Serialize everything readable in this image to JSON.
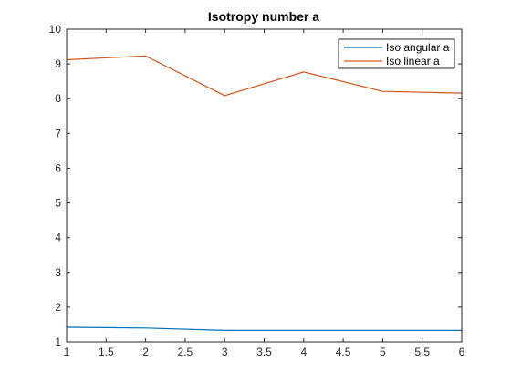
{
  "chart_data": {
    "type": "line",
    "title": "Isotropy number a",
    "xlabel": "",
    "ylabel": "",
    "xlim": [
      1,
      6
    ],
    "ylim": [
      1,
      10
    ],
    "xticks": [
      "1",
      "1.5",
      "2",
      "2.5",
      "3",
      "3.5",
      "4",
      "4.5",
      "5",
      "5.5",
      "6"
    ],
    "yticks": [
      "1",
      "2",
      "3",
      "4",
      "5",
      "6",
      "7",
      "8",
      "9",
      "10"
    ],
    "grid": false,
    "legend_position": "top-right",
    "x": [
      1,
      2,
      3,
      4,
      5,
      6
    ],
    "series": [
      {
        "name": "Iso angular a",
        "color": "#0072BD",
        "values": [
          1.42,
          1.4,
          1.33,
          1.33,
          1.33,
          1.33
        ]
      },
      {
        "name": "Iso linear a",
        "color": "#D95319",
        "values": [
          9.12,
          9.23,
          8.09,
          8.77,
          8.21,
          8.16
        ]
      }
    ]
  }
}
